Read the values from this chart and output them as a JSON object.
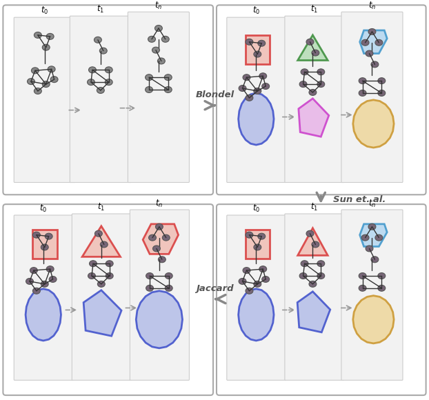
{
  "bg_color": "#ffffff",
  "node_color": "#888888",
  "node_edge": "#555555",
  "edge_color": "#333333",
  "arrow_color": "#999999",
  "box_colors": {
    "red": "#d94040",
    "green": "#409040",
    "blue": "#4455cc",
    "magenta": "#cc44cc",
    "orange": "#cc9933",
    "lightblue": "#4499cc"
  },
  "fill_colors": {
    "red": "#f0c0b8",
    "green": "#b8ddb8",
    "blue": "#b8c0e8",
    "magenta": "#e8b8e8",
    "orange": "#eed8a0",
    "lightblue": "#b8d8f0"
  },
  "label_blondel": "Blondel",
  "label_sun": "Sun et. al.",
  "label_jaccard": "Jaccard",
  "t_labels": [
    "$t_0$",
    "$t_1$",
    "$t_n$"
  ],
  "panel_face": "#f2f2f2",
  "panel_edge": "#cccccc",
  "outer_box_face": "#ffffff",
  "outer_box_edge": "#aaaaaa"
}
